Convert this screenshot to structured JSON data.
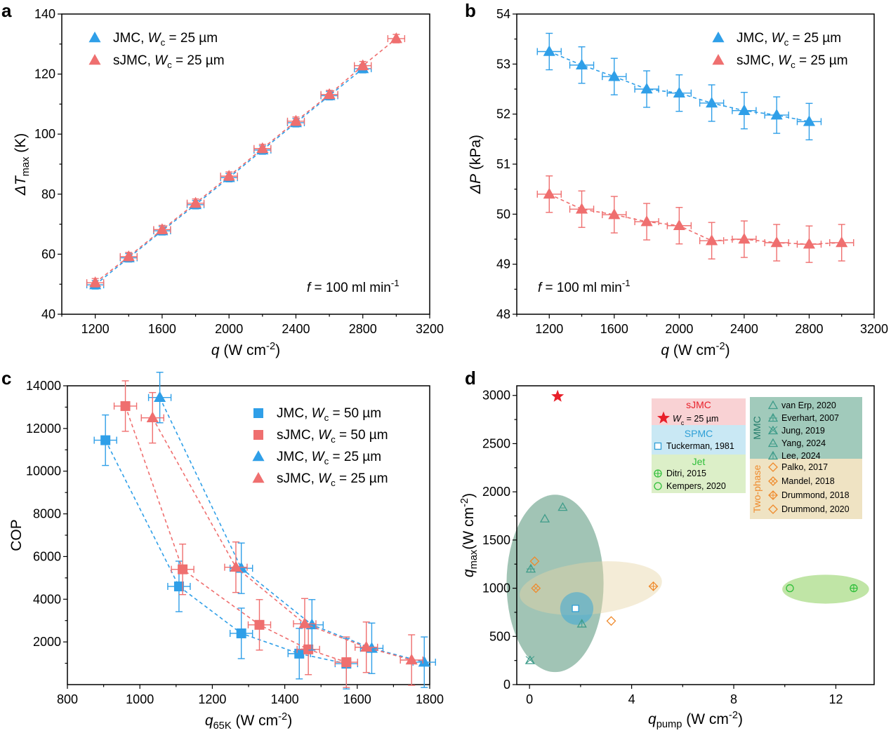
{
  "colors": {
    "blue": "#2f9fe8",
    "red": "#ef6f6f",
    "mmc": "#3f9c8a",
    "twophase": "#ef8a2c",
    "jet": "#2fbf3a",
    "spmc": "#2f9fd6",
    "sjmc": "#e8202a"
  },
  "chart_data": [
    {
      "panel": "a",
      "type": "line",
      "xlabel_main": "q",
      "xlabel_unit": "(W cm",
      "xlabel_exp": "-2",
      "xlabel_close": ")",
      "ylabel_main": "ΔT",
      "ylabel_sub": "max",
      "ylabel_unit": "(K)",
      "xlim": [
        1000,
        3200
      ],
      "ylim": [
        40,
        140
      ],
      "xticks": [
        1200,
        1600,
        2000,
        2400,
        2800,
        3200
      ],
      "yticks": [
        40,
        60,
        80,
        100,
        120,
        140
      ],
      "annotation": {
        "pre": "f",
        "mid": " = 100 ml min",
        "exp": "-1"
      },
      "series": [
        {
          "name": "JMC",
          "wc": "W",
          "wc_sub": "c",
          "wc_val": " = 25 µm",
          "color": "blue",
          "marker": "triangle",
          "x": [
            1200,
            1400,
            1600,
            1800,
            2000,
            2200,
            2400,
            2600,
            2800
          ],
          "y": [
            49.8,
            58.8,
            67.8,
            76.5,
            85.5,
            94.7,
            103.8,
            112.8,
            121.8
          ]
        },
        {
          "name": "sJMC",
          "wc": "W",
          "wc_sub": "c",
          "wc_val": " = 25 µm",
          "color": "red",
          "marker": "triangle",
          "x": [
            1200,
            1400,
            1600,
            1800,
            2000,
            2200,
            2400,
            2600,
            2800,
            3000
          ],
          "y": [
            50.5,
            59.2,
            68.2,
            77,
            86,
            95.2,
            104.3,
            113.2,
            122.8,
            131.8
          ]
        }
      ]
    },
    {
      "panel": "b",
      "type": "line",
      "xlabel_main": "q",
      "xlabel_unit": "(W cm",
      "xlabel_exp": "-2",
      "xlabel_close": ")",
      "ylabel_main": "ΔP",
      "ylabel_unit": "(kPa)",
      "xlim": [
        1000,
        3200
      ],
      "ylim": [
        48,
        54
      ],
      "xticks": [
        1200,
        1600,
        2000,
        2400,
        2800,
        3200
      ],
      "yticks": [
        48,
        49,
        50,
        51,
        52,
        53,
        54
      ],
      "annotation": {
        "pre": "f",
        "mid": " = 100 ml min",
        "exp": "-1"
      },
      "series": [
        {
          "name": "JMC",
          "wc": "W",
          "wc_sub": "c",
          "wc_val": " = 25 µm",
          "color": "blue",
          "marker": "triangle",
          "x": [
            1200,
            1400,
            1600,
            1800,
            2000,
            2200,
            2400,
            2600,
            2800
          ],
          "y": [
            53.25,
            52.98,
            52.75,
            52.5,
            52.42,
            52.22,
            52.07,
            51.98,
            51.85
          ]
        },
        {
          "name": "sJMC",
          "wc": "W",
          "wc_sub": "c",
          "wc_val": " = 25 µm",
          "color": "red",
          "marker": "triangle",
          "x": [
            1200,
            1400,
            1600,
            1800,
            2000,
            2200,
            2400,
            2600,
            2800,
            3000
          ],
          "y": [
            50.4,
            50.1,
            49.99,
            49.85,
            49.77,
            49.47,
            49.5,
            49.43,
            49.4,
            49.43
          ]
        }
      ]
    },
    {
      "panel": "c",
      "type": "line",
      "xlabel_main": "q",
      "xlabel_sub": "65K",
      "xlabel_unit": " (W cm",
      "xlabel_exp": "-2",
      "xlabel_close": ")",
      "ylabel_main": "COP",
      "xlim": [
        800,
        1800
      ],
      "ylim": [
        0,
        14000
      ],
      "xticks": [
        800,
        1000,
        1200,
        1400,
        1600,
        1800
      ],
      "yticks": [
        2000,
        4000,
        6000,
        8000,
        10000,
        12000,
        14000
      ],
      "series": [
        {
          "name": "JMC",
          "wc": "W",
          "wc_sub": "c",
          "wc_val": " = 50 µm",
          "color": "blue",
          "marker": "square",
          "x": [
            905,
            1108,
            1280,
            1440,
            1570
          ],
          "y": [
            11450,
            4600,
            2400,
            1450,
            980
          ]
        },
        {
          "name": "sJMC",
          "wc": "W",
          "wc_sub": "c",
          "wc_val": " = 50 µm",
          "color": "red",
          "marker": "square",
          "x": [
            960,
            1118,
            1330,
            1465,
            1570
          ],
          "y": [
            13050,
            5400,
            2800,
            1650,
            1050
          ]
        },
        {
          "name": "JMC",
          "wc": "W",
          "wc_sub": "c",
          "wc_val": " = 25 µm",
          "color": "blue",
          "marker": "triangle",
          "x": [
            1055,
            1280,
            1475,
            1640,
            1785
          ],
          "y": [
            13450,
            5450,
            2800,
            1700,
            1050
          ]
        },
        {
          "name": "sJMC",
          "wc": "W",
          "wc_sub": "c",
          "wc_val": " = 25 µm",
          "color": "red",
          "marker": "triangle",
          "x": [
            1035,
            1265,
            1455,
            1625,
            1750
          ],
          "y": [
            12500,
            5500,
            2850,
            1750,
            1150
          ]
        }
      ]
    },
    {
      "panel": "d",
      "type": "scatter",
      "xlabel_main": "q",
      "xlabel_sub": "pump",
      "xlabel_unit": " (W cm",
      "xlabel_exp": "-2",
      "xlabel_close": ")",
      "ylabel_main": "q",
      "ylabel_sub": "max",
      "ylabel_unit": "(W cm",
      "ylabel_exp": "-2",
      "ylabel_close": ")",
      "xlim": [
        -0.5,
        13.5
      ],
      "ylim": [
        0,
        3100
      ],
      "xticks": [
        0,
        4,
        8,
        12
      ],
      "yticks": [
        0,
        500,
        1000,
        1500,
        2000,
        2500,
        3000
      ],
      "groups": {
        "sjmc": {
          "title": "sJMC",
          "entries": [
            {
              "label_pre": "W",
              "label_sub": "c",
              "label_post": " = 25 µm",
              "marker": "star"
            }
          ]
        },
        "spmc": {
          "title": "SPMC",
          "entries": [
            {
              "label": "Tuckerman, 1981",
              "marker": "square-open"
            }
          ]
        },
        "jet": {
          "title": "Jet",
          "entries": [
            {
              "label": "Ditri, 2015",
              "marker": "circle-plus"
            },
            {
              "label": "Kempers, 2020",
              "marker": "circle-open"
            }
          ]
        },
        "mmc": {
          "title": "MMC",
          "entries": [
            {
              "label": "van Erp, 2020",
              "marker": "tri-open"
            },
            {
              "label": "Everhart, 2007",
              "marker": "tri-plus"
            },
            {
              "label": "Jung, 2019",
              "marker": "tri-x"
            },
            {
              "label": "Yang, 2024",
              "marker": "tri-line"
            },
            {
              "label": "Lee, 2024",
              "marker": "tri-dot"
            }
          ]
        },
        "twophase": {
          "title": "Two-phase",
          "entries": [
            {
              "label": "Palko, 2017",
              "marker": "dia-open"
            },
            {
              "label": "Mandel, 2018",
              "marker": "dia-x"
            },
            {
              "label": "Drummond, 2018",
              "marker": "dia-plus"
            },
            {
              "label": "Drummond, 2020",
              "marker": "dia-open2"
            }
          ]
        }
      },
      "points": [
        {
          "group": "sjmc",
          "marker": "star",
          "x": 1.1,
          "y": 2990
        },
        {
          "group": "spmc",
          "marker": "square-open",
          "x": 1.8,
          "y": 790
        },
        {
          "group": "jet",
          "marker": "circle-plus",
          "x": 12.7,
          "y": 1000
        },
        {
          "group": "jet",
          "marker": "circle-open",
          "x": 10.2,
          "y": 1000
        },
        {
          "group": "mmc",
          "marker": "tri-open",
          "x": 0.6,
          "y": 1720
        },
        {
          "group": "mmc",
          "marker": "tri-line",
          "x": 1.3,
          "y": 1840
        },
        {
          "group": "mmc",
          "marker": "tri-plus",
          "x": 0.05,
          "y": 1200
        },
        {
          "group": "mmc",
          "marker": "tri-x",
          "x": 0.02,
          "y": 250
        },
        {
          "group": "mmc",
          "marker": "tri-dot",
          "x": 2.05,
          "y": 630
        },
        {
          "group": "twophase",
          "marker": "dia-open",
          "x": 0.2,
          "y": 1280
        },
        {
          "group": "twophase",
          "marker": "dia-x",
          "x": 0.25,
          "y": 1000
        },
        {
          "group": "twophase",
          "marker": "dia-plus",
          "x": 4.85,
          "y": 1020
        },
        {
          "group": "twophase",
          "marker": "dia-open2",
          "x": 3.2,
          "y": 660
        }
      ],
      "ellipses": [
        {
          "group": "mmc",
          "cx": 1.0,
          "cy": 1050,
          "rx": 1.9,
          "ry": 920
        },
        {
          "group": "twophase",
          "cx": 2.4,
          "cy": 1000,
          "rx": 2.8,
          "ry": 270,
          "rot": -6
        },
        {
          "group": "spmc",
          "cx": 1.85,
          "cy": 790,
          "rx": 0.65,
          "ry": 170
        },
        {
          "group": "jet",
          "cx": 11.6,
          "cy": 990,
          "rx": 1.7,
          "ry": 150
        }
      ]
    }
  ]
}
